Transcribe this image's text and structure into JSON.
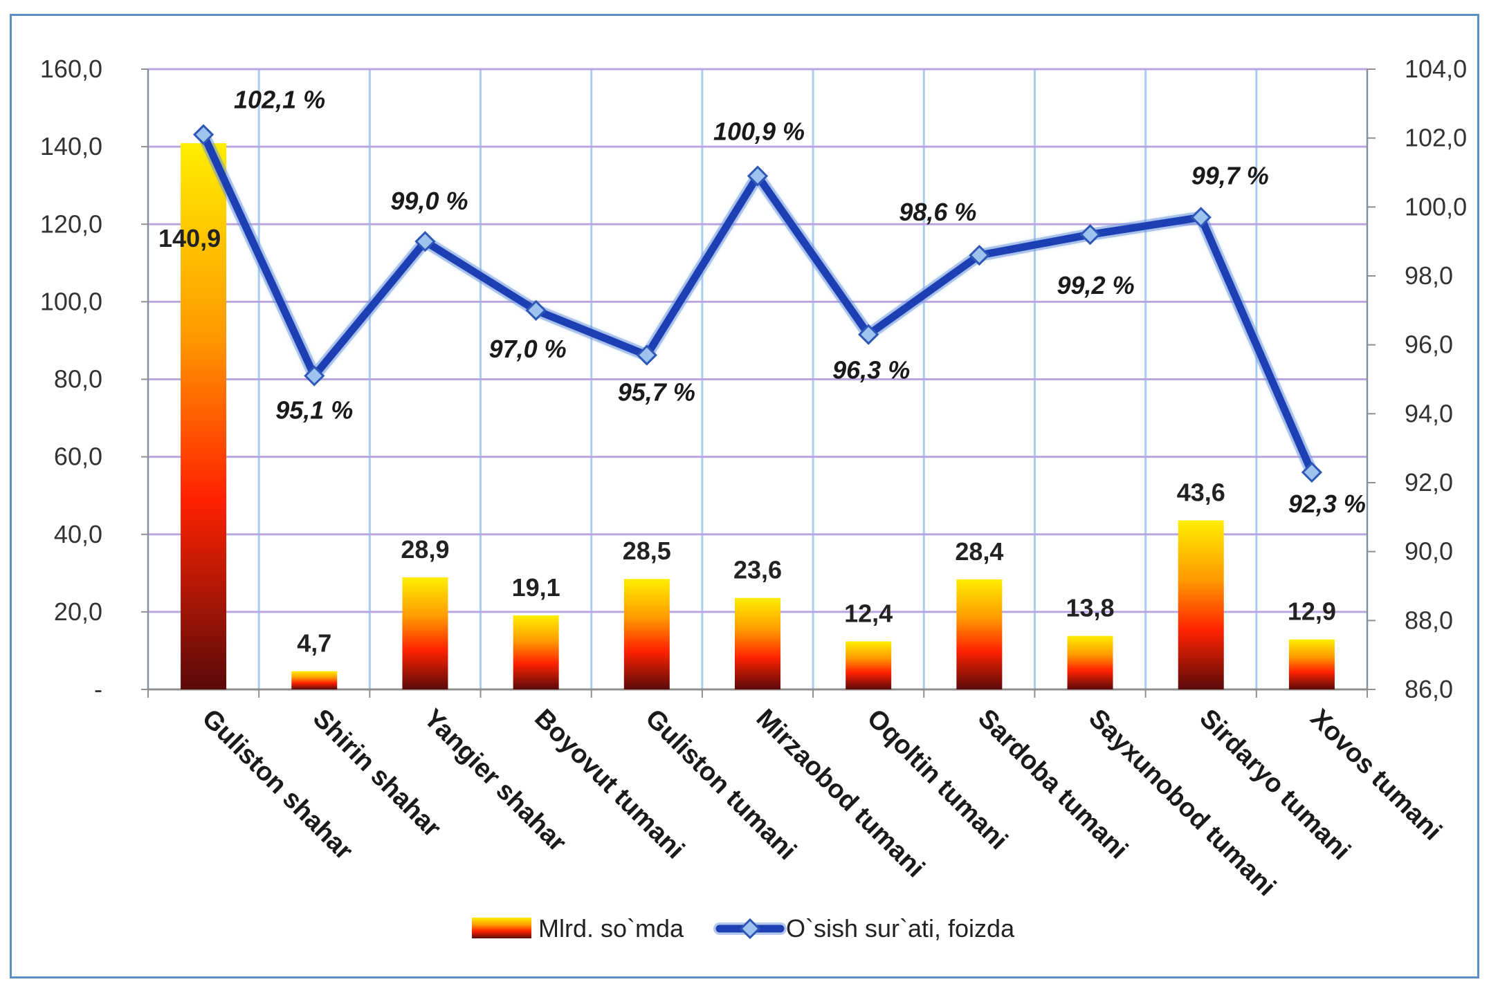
{
  "chart_data": {
    "type": "bar",
    "categories": [
      "Guliston shahar",
      "Shirin shahar",
      "Yangier shahar",
      "Boyovut tumani",
      "Guliston tumani",
      "Mirzaobod tumani",
      "Oqoltin tumani",
      "Sardoba tumani",
      "Sayxunobod tumani",
      "Sirdaryo tumani",
      "Xovos tumani"
    ],
    "series": [
      {
        "name": "Mlrd. so`mda",
        "type": "bar",
        "axis": "left",
        "values": [
          140.9,
          4.7,
          28.9,
          19.1,
          28.5,
          23.6,
          12.4,
          28.4,
          13.8,
          43.6,
          12.9
        ],
        "labels": [
          "140,9",
          "4,7",
          "28,9",
          "19,1",
          "28,5",
          "23,6",
          "12,4",
          "28,4",
          "13,8",
          "43,6",
          "12,9"
        ]
      },
      {
        "name": "O`sish sur`ati, foizda",
        "type": "line",
        "axis": "right",
        "values": [
          102.1,
          95.1,
          99.0,
          97.0,
          95.7,
          100.9,
          96.3,
          98.6,
          99.2,
          99.7,
          92.3
        ],
        "labels": [
          "102,1 %",
          "95,1 %",
          "99,0 %",
          "97,0 %",
          "95,7 %",
          "100,9 %",
          "96,3 %",
          "98,6 %",
          "99,2 %",
          "99,7 %",
          "92,3 %"
        ]
      }
    ],
    "y_left": {
      "ylim": [
        0,
        160
      ],
      "ticks": [
        0,
        20,
        40,
        60,
        80,
        100,
        120,
        140,
        160
      ],
      "tick_labels": [
        "-",
        "20,0",
        "40,0",
        "60,0",
        "80,0",
        "100,0",
        "120,0",
        "140,0",
        "160,0"
      ]
    },
    "y_right": {
      "ylim": [
        86,
        104
      ],
      "ticks": [
        86,
        88,
        90,
        92,
        94,
        96,
        98,
        100,
        102,
        104
      ],
      "tick_labels": [
        "86,0",
        "88,0",
        "90,0",
        "92,0",
        "94,0",
        "96,0",
        "98,0",
        "100,0",
        "102,0",
        "104,0"
      ]
    },
    "grid": true,
    "legend_position": "bottom",
    "colors": {
      "bar_top": "#ffee00",
      "bar_mid": "#ff2200",
      "bar_bottom": "#5a0a0a",
      "line": "#1d3fb3",
      "marker": "#9ec3ee",
      "grid_vertical": "#a9cdf2",
      "grid_horizontal": "#b9a6e0",
      "frame": "#5b8fc9"
    }
  }
}
